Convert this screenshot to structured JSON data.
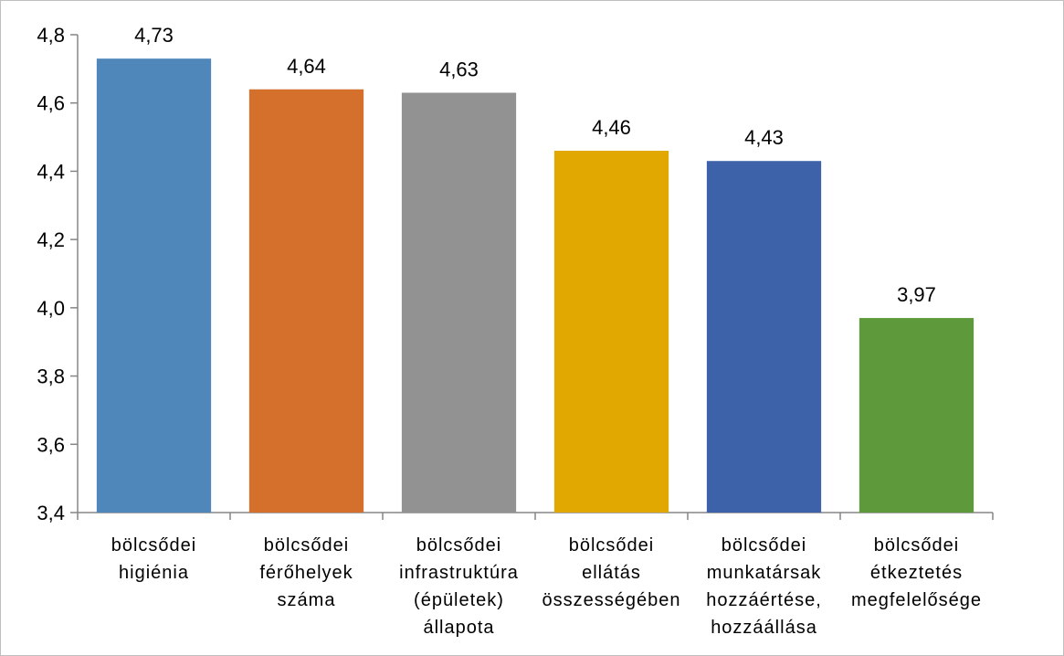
{
  "chart_data": {
    "type": "bar",
    "title": "",
    "xlabel": "",
    "ylabel": "",
    "ylim": [
      3.4,
      4.8
    ],
    "ytick_step": 0.2,
    "yticks": [
      "3,4",
      "3,6",
      "3,8",
      "4,0",
      "4,2",
      "4,4",
      "4,6",
      "4,8"
    ],
    "grid": false,
    "legend": "none",
    "categories": [
      [
        "bölcsődei",
        "higiénia"
      ],
      [
        "bölcsődei",
        "férőhelyek",
        "száma"
      ],
      [
        "bölcsődei",
        "infrastruktúra",
        "(épületek)",
        "állapota"
      ],
      [
        "bölcsődei",
        "ellátás",
        "összességében"
      ],
      [
        "bölcsődei",
        "munkatársak",
        "hozzáértése,",
        "hozzáállása"
      ],
      [
        "bölcsődei",
        "étkeztetés",
        "megfelelősége"
      ]
    ],
    "values": [
      4.73,
      4.64,
      4.63,
      4.46,
      4.43,
      3.97
    ],
    "value_labels": [
      "4,73",
      "4,64",
      "4,63",
      "4,46",
      "4,43",
      "3,97"
    ],
    "colors": [
      "#4f87ba",
      "#d4702c",
      "#929292",
      "#e0a800",
      "#3d62aa",
      "#5e9a3c"
    ],
    "axis_color": "#868686"
  }
}
